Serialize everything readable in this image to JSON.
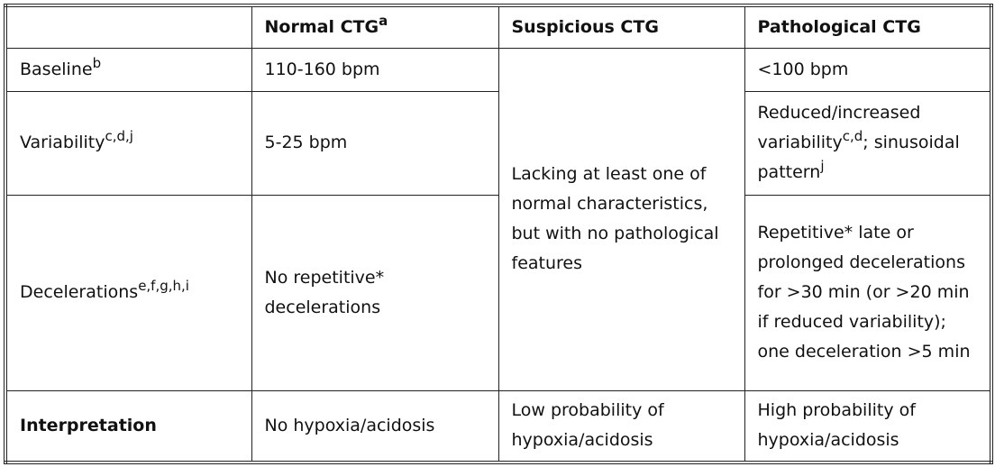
{
  "table": {
    "header": [
      [
        {
          "text": "Normal CTG"
        },
        {
          "sup": "a"
        }
      ],
      [
        {
          "text": "Suspicious CTG"
        }
      ],
      [
        {
          "text": "Pathological CTG"
        }
      ]
    ],
    "rows": [
      [
        [
          {
            "text": "Baseline"
          },
          {
            "sup": "b"
          }
        ],
        [
          {
            "text": "110-160 bpm"
          }
        ],
        [
          {
            "text": "Lacking at least one of normal characteristics, but with no pathological features"
          }
        ],
        [
          {
            "text": "<100 bpm"
          }
        ]
      ],
      [
        [
          {
            "text": "Variability"
          },
          {
            "sup": "c,d,j"
          }
        ],
        [
          {
            "text": "5-25 bpm"
          }
        ],
        [
          {
            "text": "Reduced/increased variability"
          },
          {
            "sup": "c,d"
          },
          {
            "text": "; sinusoidal pattern"
          },
          {
            "sup": "j"
          }
        ]
      ],
      [
        [
          {
            "text": "Decelerations"
          },
          {
            "sup": "e,f,g,h,i"
          }
        ],
        [
          {
            "text": "No repetitive* decelerations"
          }
        ],
        [
          {
            "text": "Repetitive* late or prolonged decelerations for >30 min (or >20 min if reduced variability); one deceleration >5 min"
          }
        ]
      ],
      [
        [
          {
            "text": "Interpretation"
          }
        ],
        [
          {
            "text": "No hypoxia/acidosis"
          }
        ],
        [
          {
            "text": "Low probability of hypoxia/acidosis"
          }
        ],
        [
          {
            "text": "High probability of hypoxia/acidosis"
          }
        ]
      ]
    ]
  }
}
